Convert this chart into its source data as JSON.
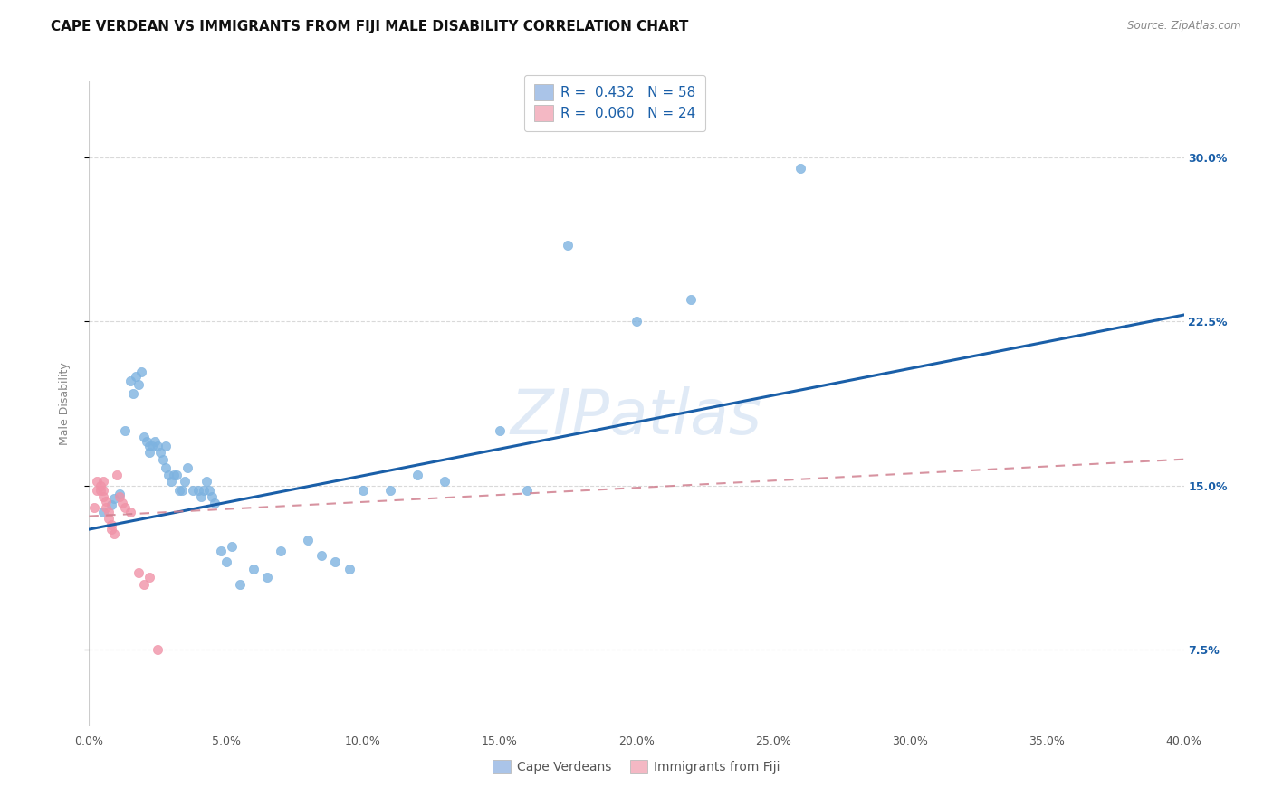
{
  "title": "CAPE VERDEAN VS IMMIGRANTS FROM FIJI MALE DISABILITY CORRELATION CHART",
  "source": "Source: ZipAtlas.com",
  "ylabel_label": "Male Disability",
  "xlim": [
    0.0,
    0.4
  ],
  "ylim": [
    0.04,
    0.335
  ],
  "legend_entries": [
    {
      "label": "R =  0.432   N = 58",
      "facecolor": "#aac4e8"
    },
    {
      "label": "R =  0.060   N = 24",
      "facecolor": "#f4b8c4"
    }
  ],
  "watermark": "ZIPatlas",
  "blue_scatter_color": "#7eb3e0",
  "pink_scatter_color": "#f093a8",
  "blue_line_color": "#1a5fa8",
  "pink_line_color": "#d08090",
  "blue_points": [
    [
      0.005,
      0.138
    ],
    [
      0.008,
      0.141
    ],
    [
      0.009,
      0.144
    ],
    [
      0.011,
      0.146
    ],
    [
      0.013,
      0.175
    ],
    [
      0.015,
      0.198
    ],
    [
      0.016,
      0.192
    ],
    [
      0.017,
      0.2
    ],
    [
      0.018,
      0.196
    ],
    [
      0.019,
      0.202
    ],
    [
      0.02,
      0.172
    ],
    [
      0.021,
      0.17
    ],
    [
      0.022,
      0.168
    ],
    [
      0.022,
      0.165
    ],
    [
      0.023,
      0.168
    ],
    [
      0.024,
      0.17
    ],
    [
      0.025,
      0.168
    ],
    [
      0.026,
      0.165
    ],
    [
      0.027,
      0.162
    ],
    [
      0.028,
      0.168
    ],
    [
      0.028,
      0.158
    ],
    [
      0.029,
      0.155
    ],
    [
      0.03,
      0.152
    ],
    [
      0.031,
      0.155
    ],
    [
      0.032,
      0.155
    ],
    [
      0.033,
      0.148
    ],
    [
      0.034,
      0.148
    ],
    [
      0.035,
      0.152
    ],
    [
      0.036,
      0.158
    ],
    [
      0.038,
      0.148
    ],
    [
      0.04,
      0.148
    ],
    [
      0.041,
      0.145
    ],
    [
      0.042,
      0.148
    ],
    [
      0.043,
      0.152
    ],
    [
      0.044,
      0.148
    ],
    [
      0.045,
      0.145
    ],
    [
      0.046,
      0.142
    ],
    [
      0.048,
      0.12
    ],
    [
      0.05,
      0.115
    ],
    [
      0.052,
      0.122
    ],
    [
      0.055,
      0.105
    ],
    [
      0.06,
      0.112
    ],
    [
      0.065,
      0.108
    ],
    [
      0.07,
      0.12
    ],
    [
      0.08,
      0.125
    ],
    [
      0.085,
      0.118
    ],
    [
      0.09,
      0.115
    ],
    [
      0.095,
      0.112
    ],
    [
      0.1,
      0.148
    ],
    [
      0.11,
      0.148
    ],
    [
      0.12,
      0.155
    ],
    [
      0.13,
      0.152
    ],
    [
      0.15,
      0.175
    ],
    [
      0.16,
      0.148
    ],
    [
      0.175,
      0.26
    ],
    [
      0.2,
      0.225
    ],
    [
      0.22,
      0.235
    ],
    [
      0.26,
      0.295
    ]
  ],
  "pink_points": [
    [
      0.002,
      0.14
    ],
    [
      0.003,
      0.148
    ],
    [
      0.003,
      0.152
    ],
    [
      0.004,
      0.15
    ],
    [
      0.004,
      0.148
    ],
    [
      0.005,
      0.152
    ],
    [
      0.005,
      0.148
    ],
    [
      0.005,
      0.145
    ],
    [
      0.006,
      0.143
    ],
    [
      0.006,
      0.14
    ],
    [
      0.007,
      0.138
    ],
    [
      0.007,
      0.135
    ],
    [
      0.008,
      0.132
    ],
    [
      0.008,
      0.13
    ],
    [
      0.009,
      0.128
    ],
    [
      0.01,
      0.155
    ],
    [
      0.011,
      0.145
    ],
    [
      0.012,
      0.142
    ],
    [
      0.013,
      0.14
    ],
    [
      0.015,
      0.138
    ],
    [
      0.018,
      0.11
    ],
    [
      0.02,
      0.105
    ],
    [
      0.022,
      0.108
    ],
    [
      0.025,
      0.075
    ]
  ],
  "blue_regression": {
    "x_start": 0.0,
    "y_start": 0.13,
    "x_end": 0.4,
    "y_end": 0.228
  },
  "pink_regression": {
    "x_start": 0.0,
    "y_start": 0.136,
    "x_end": 0.4,
    "y_end": 0.162
  },
  "background_color": "#ffffff",
  "grid_color": "#d0d0d0",
  "y_tick_vals": [
    0.075,
    0.15,
    0.225,
    0.3
  ],
  "y_tick_labels": [
    "7.5%",
    "15.0%",
    "22.5%",
    "30.0%"
  ],
  "x_tick_vals": [
    0.0,
    0.05,
    0.1,
    0.15,
    0.2,
    0.25,
    0.3,
    0.35,
    0.4
  ],
  "x_tick_labels": [
    "0.0%",
    "5.0%",
    "10.0%",
    "15.0%",
    "20.0%",
    "25.0%",
    "30.0%",
    "35.0%",
    "40.0%"
  ],
  "title_fontsize": 11,
  "axis_label_fontsize": 9,
  "tick_fontsize": 9,
  "legend_fontsize": 11,
  "bottom_legend": [
    "Cape Verdeans",
    "Immigrants from Fiji"
  ]
}
